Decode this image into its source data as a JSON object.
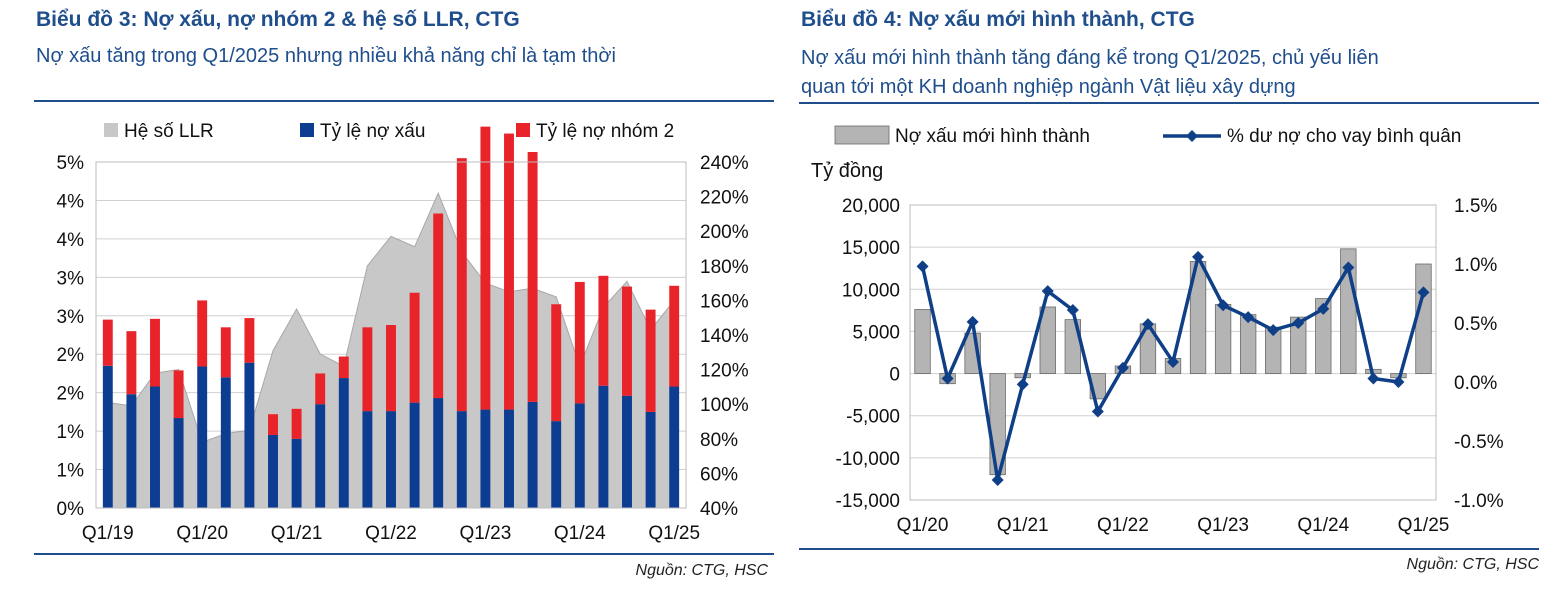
{
  "chart_data": [
    {
      "type": "bar",
      "title": "Biểu đồ 3: Nợ xấu, nợ nhóm 2 & hệ số LLR, CTG",
      "subtitle": "Nợ xấu tăng trong Q1/2025 nhưng nhiều khả năng chỉ là tạm thời",
      "source": "Nguồn: CTG, HSC",
      "x_tick_labels": [
        "Q1/19",
        "Q1/20",
        "Q1/21",
        "Q1/22",
        "Q1/23",
        "Q1/24",
        "Q1/25"
      ],
      "y_left_tick_labels": [
        "0%",
        "1%",
        "1%",
        "2%",
        "2%",
        "3%",
        "3%",
        "4%",
        "4%",
        "5%"
      ],
      "y_right_tick_labels": [
        "40%",
        "60%",
        "80%",
        "100%",
        "120%",
        "140%",
        "160%",
        "180%",
        "200%",
        "220%",
        "240%"
      ],
      "ylim_left": [
        0,
        4.5
      ],
      "ylim_right": [
        40,
        240
      ],
      "categories": [
        "Q1/19",
        "Q2/19",
        "Q3/19",
        "Q4/19",
        "Q1/20",
        "Q2/20",
        "Q3/20",
        "Q4/20",
        "Q1/21",
        "Q2/21",
        "Q3/21",
        "Q4/21",
        "Q1/22",
        "Q2/22",
        "Q3/22",
        "Q4/22",
        "Q1/23",
        "Q2/23",
        "Q3/23",
        "Q4/23",
        "Q1/24",
        "Q2/24",
        "Q3/24",
        "Q4/24",
        "Q1/25"
      ],
      "legend": [
        "Hệ số LLR",
        "Tỷ lệ nợ xấu",
        "Tỷ lệ nợ nhóm 2"
      ],
      "series": [
        {
          "name": "Tỷ lệ nợ xấu",
          "kind": "stacked-bar",
          "axis": "left",
          "color": "#0d3d91",
          "values": [
            1.85,
            1.48,
            1.58,
            1.17,
            1.84,
            1.7,
            1.89,
            0.95,
            0.9,
            1.35,
            1.69,
            1.26,
            1.26,
            1.37,
            1.43,
            1.26,
            1.28,
            1.28,
            1.38,
            1.13,
            1.36,
            1.59,
            1.46,
            1.25,
            1.58
          ]
        },
        {
          "name": "Tỷ lệ nợ nhóm 2",
          "kind": "stacked-bar",
          "axis": "left",
          "color": "#e8242a",
          "values": [
            0.6,
            0.82,
            0.88,
            0.62,
            0.86,
            0.65,
            0.58,
            0.27,
            0.39,
            0.4,
            0.28,
            1.09,
            1.12,
            1.43,
            2.4,
            3.29,
            3.68,
            3.59,
            3.25,
            1.52,
            1.58,
            1.43,
            1.42,
            1.33,
            1.31
          ]
        },
        {
          "name": "Hệ số LLR",
          "kind": "area",
          "axis": "right",
          "color": "#c8c8c8",
          "values": [
            101,
            99,
            118,
            120,
            78,
            83,
            85,
            131,
            155,
            129,
            122,
            180,
            197,
            191,
            222,
            188,
            170,
            165,
            167,
            162,
            122,
            156,
            171,
            143,
            160
          ]
        }
      ]
    },
    {
      "type": "bar",
      "title": "Biểu đồ 4: Nợ xấu mới hình thành, CTG",
      "subtitle_lines": [
        "Nợ xấu mới hình thành tăng đáng kể trong Q1/2025, chủ yếu liên",
        "quan tới một KH doanh nghiệp ngành Vật liệu xây dựng"
      ],
      "source": "Nguồn: CTG, HSC",
      "ylabel": "Tỷ đồng",
      "x_tick_labels": [
        "Q1/20",
        "Q1/21",
        "Q1/22",
        "Q1/23",
        "Q1/24",
        "Q1/25"
      ],
      "y_left_tick_labels": [
        "-15,000",
        "-10,000",
        "-5,000",
        "0",
        "5,000",
        "10,000",
        "15,000",
        "20,000"
      ],
      "y_right_tick_labels": [
        "-1.0%",
        "-0.5%",
        "0.0%",
        "0.5%",
        "1.0%",
        "1.5%"
      ],
      "ylim_left": [
        -15000,
        20000
      ],
      "ylim_right": [
        -1.0,
        1.5
      ],
      "categories": [
        "Q1/20",
        "Q2/20",
        "Q3/20",
        "Q4/20",
        "Q1/21",
        "Q2/21",
        "Q3/21",
        "Q4/21",
        "Q1/22",
        "Q2/22",
        "Q3/22",
        "Q4/22",
        "Q1/23",
        "Q2/23",
        "Q3/23",
        "Q4/23",
        "Q1/24",
        "Q2/24",
        "Q3/24",
        "Q4/24",
        "Q1/25"
      ],
      "legend": [
        "Nợ xấu mới hình thành",
        "% dư nợ cho vay bình quân"
      ],
      "series": [
        {
          "name": "Nợ xấu mới hình thành",
          "kind": "bar",
          "axis": "left",
          "color": "#b4b4b4",
          "values": [
            7600,
            -1200,
            4800,
            -12000,
            -500,
            7900,
            6400,
            -3000,
            900,
            5900,
            1800,
            13300,
            8200,
            7000,
            5500,
            6700,
            8900,
            14800,
            500,
            -500,
            13000
          ]
        },
        {
          "name": "% dư nợ cho vay bình quân",
          "kind": "line",
          "axis": "right",
          "color": "#0f3f86",
          "values": [
            0.98,
            0.03,
            0.51,
            -0.83,
            -0.02,
            0.77,
            0.61,
            -0.25,
            0.12,
            0.49,
            0.17,
            1.06,
            0.65,
            0.55,
            0.44,
            0.5,
            0.62,
            0.97,
            0.03,
            0.0,
            0.76
          ]
        }
      ]
    }
  ]
}
